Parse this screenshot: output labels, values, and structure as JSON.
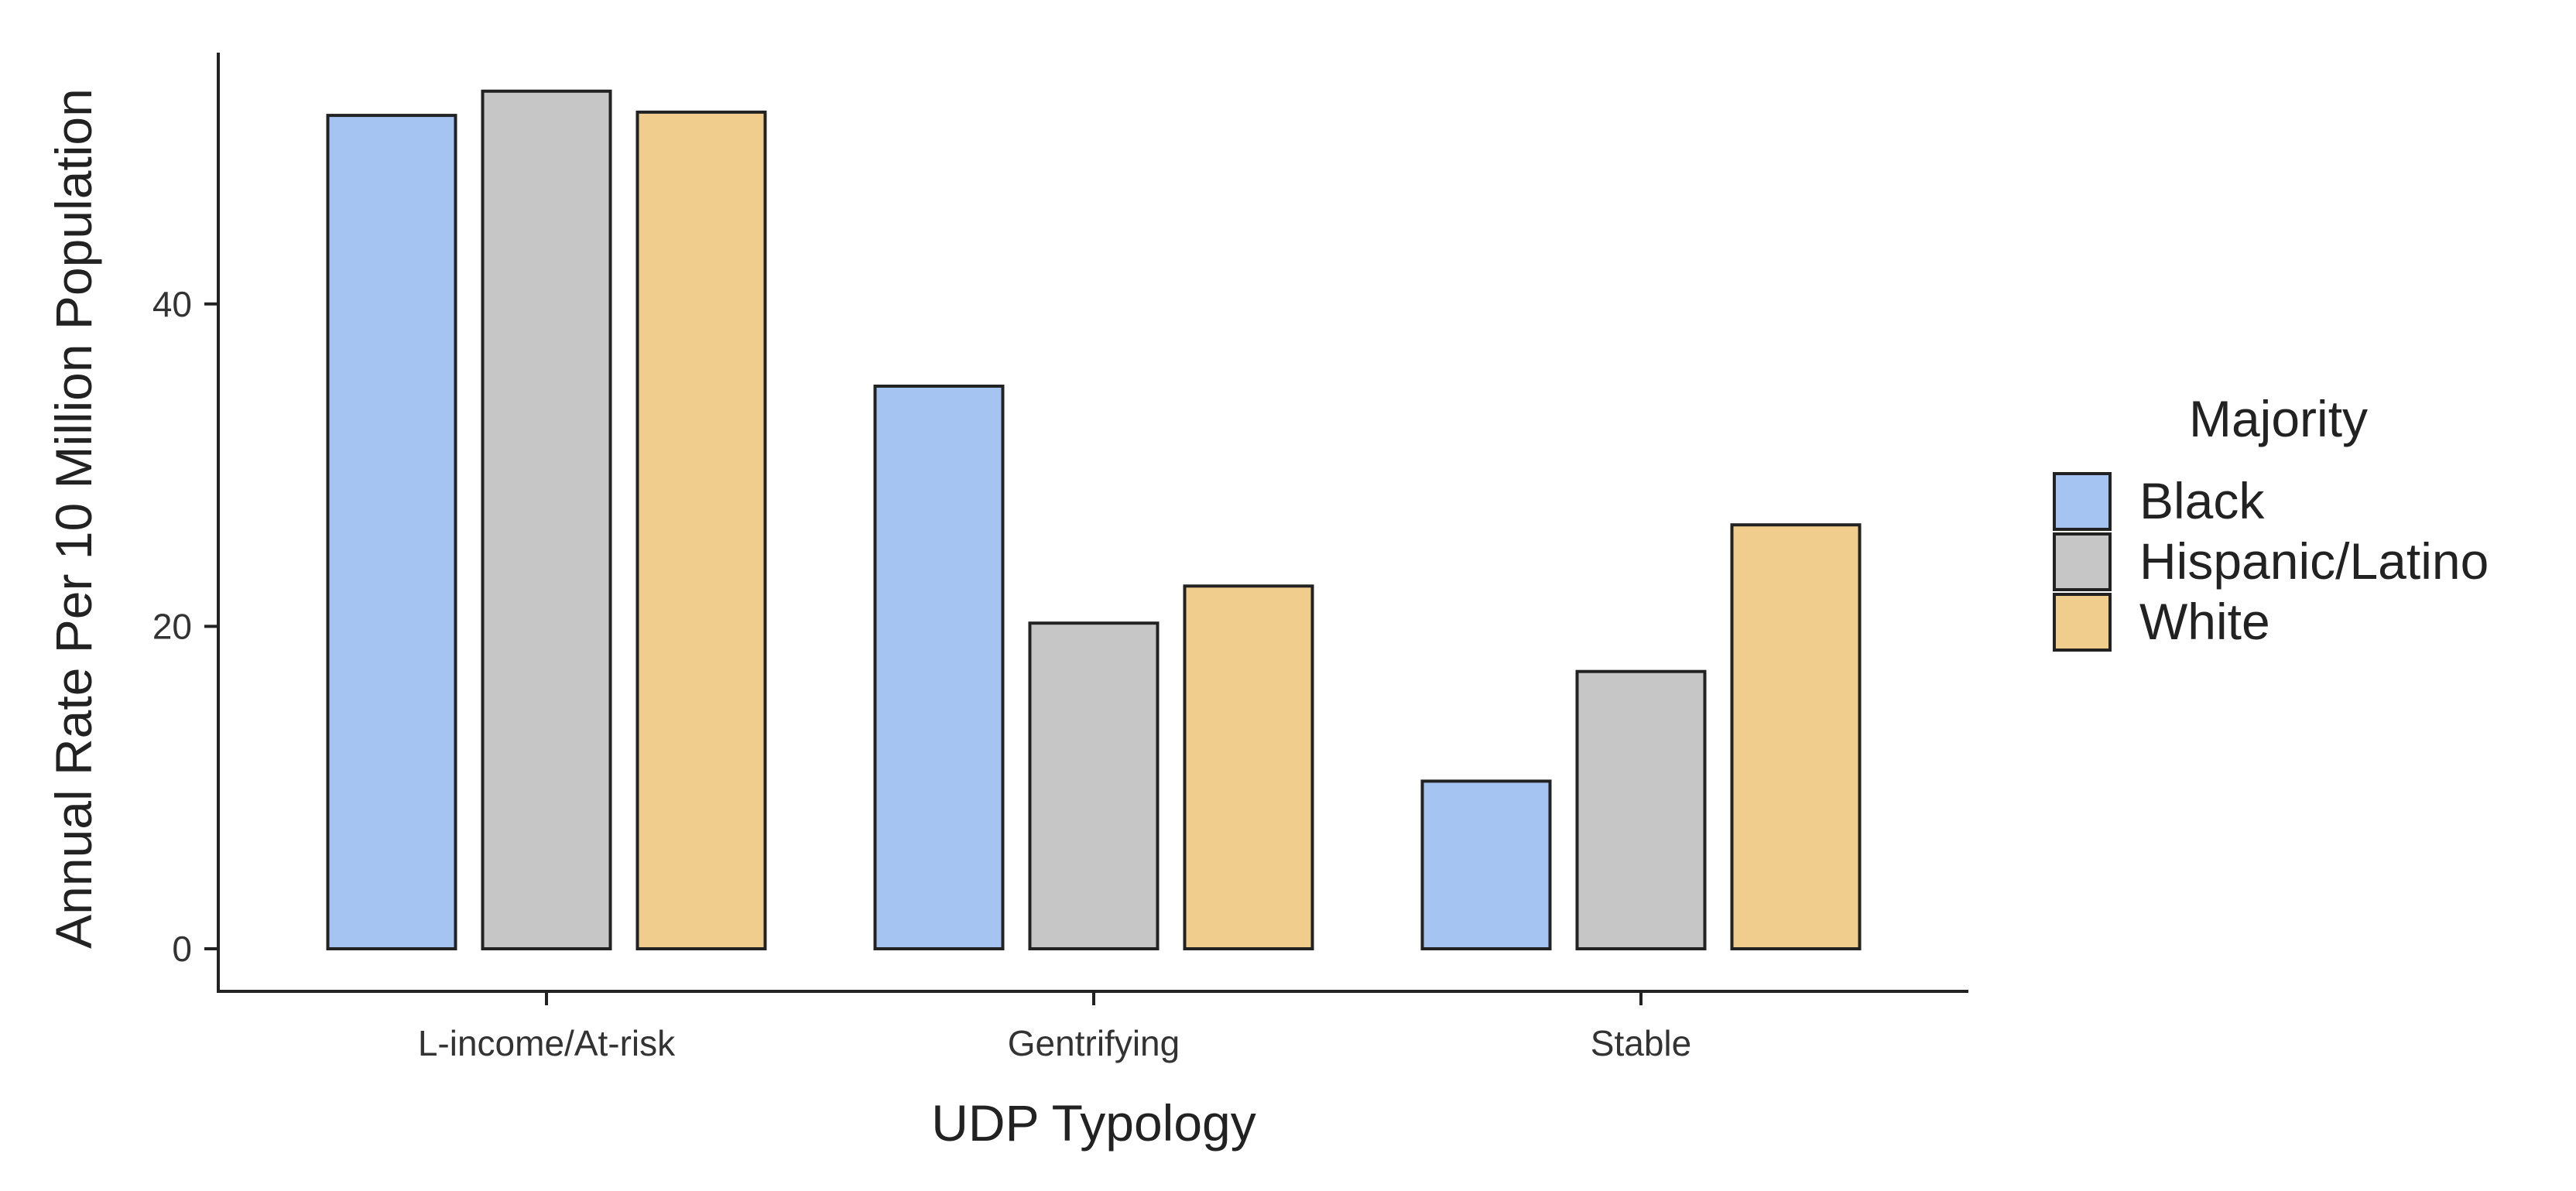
{
  "chart_data": {
    "type": "bar",
    "xlabel": "UDP Typology",
    "ylabel": "Annual Rate Per 10 Million Population",
    "categories": [
      "L-income/At-risk",
      "Gentrifying",
      "Stable"
    ],
    "series": [
      {
        "name": "Black",
        "values": [
          51.7,
          34.9,
          10.4
        ],
        "color": "#A6C4F2"
      },
      {
        "name": "Hispanic/Latino",
        "values": [
          53.2,
          20.2,
          17.2
        ],
        "color": "#C6C6C6"
      },
      {
        "name": "White",
        "values": [
          51.9,
          22.5,
          26.3
        ],
        "color": "#F0CD8C"
      }
    ],
    "yticks": [
      0,
      20,
      40
    ],
    "ytick_labels": [
      "0",
      "20",
      "40"
    ],
    "ylim": [
      -2.7,
      56
    ],
    "grid": false,
    "legend": {
      "title": "Majority",
      "position": "right"
    }
  }
}
